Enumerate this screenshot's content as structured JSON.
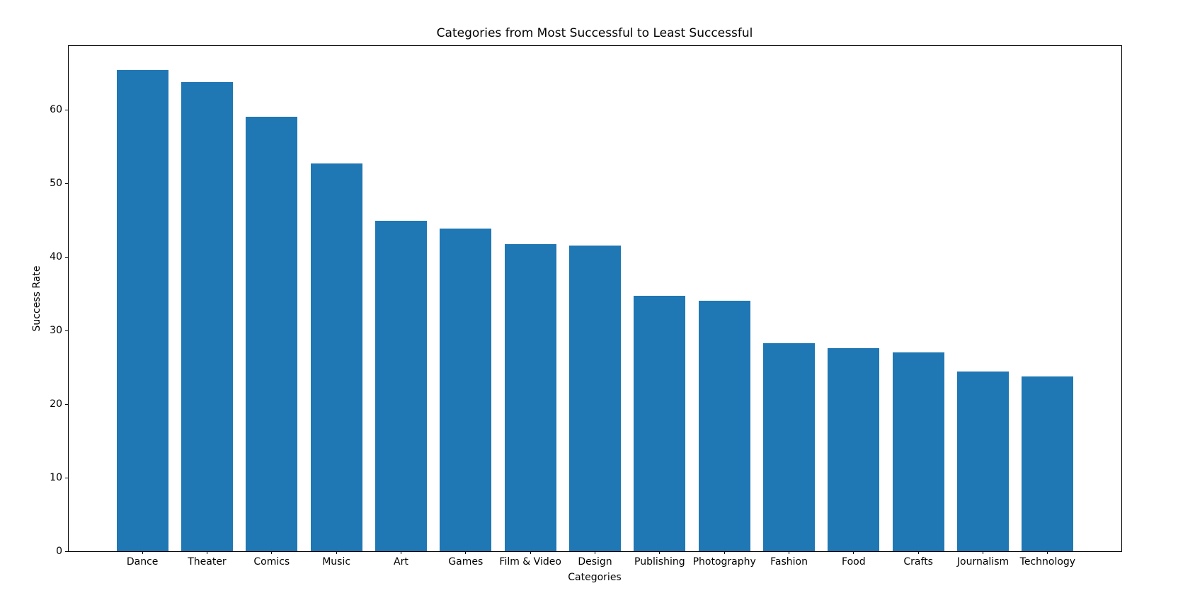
{
  "chart_data": {
    "type": "bar",
    "title": "Categories from Most Successful to Least Successful",
    "xlabel": "Categories",
    "ylabel": "Success Rate",
    "categories": [
      "Dance",
      "Theater",
      "Comics",
      "Music",
      "Art",
      "Games",
      "Film & Video",
      "Design",
      "Publishing",
      "Photography",
      "Fashion",
      "Food",
      "Crafts",
      "Journalism",
      "Technology"
    ],
    "values": [
      65.4,
      63.8,
      59.1,
      52.7,
      44.9,
      43.9,
      41.8,
      41.6,
      34.7,
      34.1,
      28.3,
      27.6,
      27.0,
      24.4,
      23.8
    ],
    "yticks": [
      0,
      10,
      20,
      30,
      40,
      50,
      60
    ],
    "ylim": [
      0,
      68.7
    ],
    "bar_color": "#1f77b4",
    "axis_color": "#000000",
    "background_color": "#ffffff",
    "grid": false,
    "legend": "none",
    "bar_relative_width": 0.8
  }
}
